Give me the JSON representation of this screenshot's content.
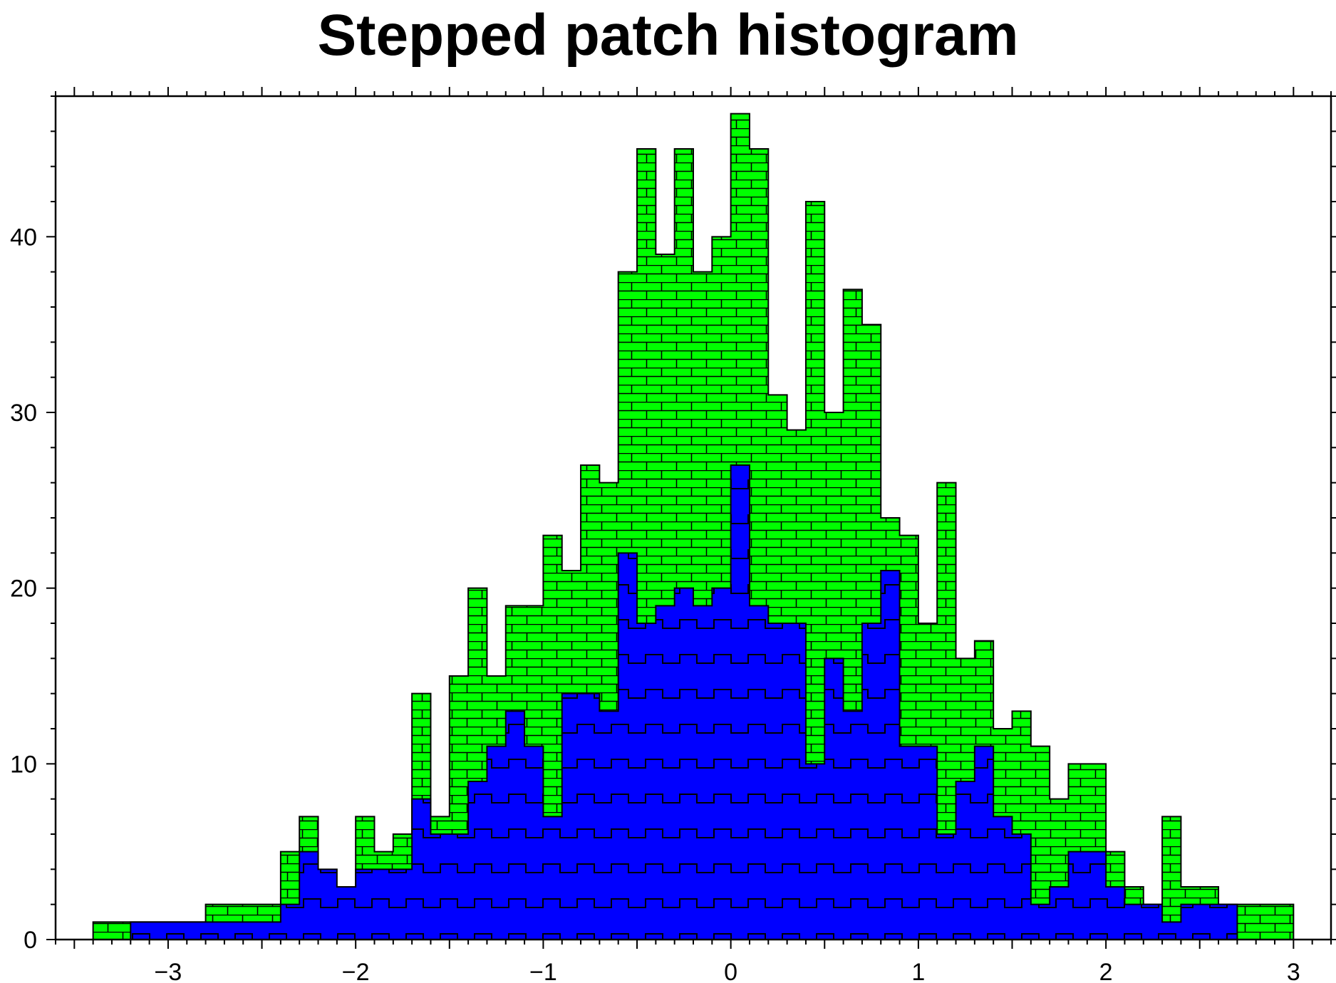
{
  "chart_data": {
    "type": "bar",
    "title": "Stepped patch histogram",
    "xlabel": "",
    "ylabel": "",
    "xlim": [
      -3.6,
      3.2
    ],
    "ylim": [
      0,
      48
    ],
    "bin_width": 0.1,
    "x_tick_labels": [
      "−3",
      "−2",
      "−1",
      "0",
      "1",
      "2",
      "3"
    ],
    "x_ticks": [
      -3,
      -2,
      -1,
      0,
      1,
      2,
      3
    ],
    "y_tick_labels": [
      "0",
      "10",
      "20",
      "30",
      "40"
    ],
    "y_ticks": [
      0,
      10,
      20,
      30,
      40
    ],
    "grid": false,
    "legend": "none",
    "series": [
      {
        "fill": "#00ff00",
        "pattern": "brick",
        "bins_start": [
          -3.4,
          -3.3,
          -3.2,
          -3.1,
          -3.0,
          -2.9,
          -2.8,
          -2.7,
          -2.6,
          -2.5,
          -2.4,
          -2.3,
          -2.2,
          -2.1,
          -2.0,
          -1.9,
          -1.8,
          -1.7,
          -1.6,
          -1.5,
          -1.4,
          -1.3,
          -1.2,
          -1.1,
          -1.0,
          -0.9,
          -0.8,
          -0.7,
          -0.6,
          -0.5,
          -0.4,
          -0.3,
          -0.2,
          -0.1,
          0.0,
          0.1,
          0.2,
          0.3,
          0.4,
          0.5,
          0.6,
          0.7,
          0.8,
          0.9,
          1.0,
          1.1,
          1.2,
          1.3,
          1.4,
          1.5,
          1.6,
          1.7,
          1.8,
          1.9,
          2.0,
          2.1,
          2.2,
          2.3,
          2.4,
          2.5,
          2.6,
          2.7,
          2.8,
          2.9
        ],
        "values": [
          1,
          1,
          1,
          1,
          1,
          1,
          2,
          2,
          2,
          2,
          5,
          7,
          3,
          3,
          7,
          5,
          6,
          14,
          7,
          15,
          20,
          15,
          19,
          19,
          23,
          21,
          27,
          26,
          38,
          45,
          39,
          45,
          38,
          40,
          47,
          45,
          31,
          29,
          42,
          30,
          37,
          35,
          24,
          23,
          18,
          26,
          16,
          17,
          12,
          13,
          11,
          8,
          10,
          10,
          5,
          3,
          2,
          7,
          3,
          3,
          2,
          2,
          2,
          2
        ]
      },
      {
        "fill": "#0000ff",
        "pattern": "square-wave",
        "bins_start": [
          -3.2,
          -3.1,
          -3.0,
          -2.9,
          -2.8,
          -2.7,
          -2.6,
          -2.5,
          -2.4,
          -2.3,
          -2.2,
          -2.1,
          -2.0,
          -1.9,
          -1.8,
          -1.7,
          -1.6,
          -1.5,
          -1.4,
          -1.3,
          -1.2,
          -1.1,
          -1.0,
          -0.9,
          -0.8,
          -0.7,
          -0.6,
          -0.5,
          -0.4,
          -0.3,
          -0.2,
          -0.1,
          0.0,
          0.1,
          0.2,
          0.3,
          0.4,
          0.5,
          0.6,
          0.7,
          0.8,
          0.9,
          1.0,
          1.1,
          1.2,
          1.3,
          1.4,
          1.5,
          1.6,
          1.7,
          1.8,
          1.9,
          2.0,
          2.1,
          2.2,
          2.3,
          2.4,
          2.5,
          2.6
        ],
        "values": [
          1,
          1,
          1,
          1,
          1,
          1,
          1,
          1,
          2,
          5,
          4,
          3,
          4,
          4,
          4,
          8,
          6,
          6,
          9,
          11,
          13,
          11,
          7,
          14,
          14,
          13,
          22,
          18,
          19,
          20,
          19,
          20,
          27,
          19,
          18,
          18,
          10,
          16,
          13,
          18,
          21,
          11,
          11,
          6,
          9,
          11,
          7,
          6,
          2,
          3,
          5,
          5,
          3,
          2,
          2,
          1,
          2,
          2,
          2
        ]
      }
    ]
  }
}
